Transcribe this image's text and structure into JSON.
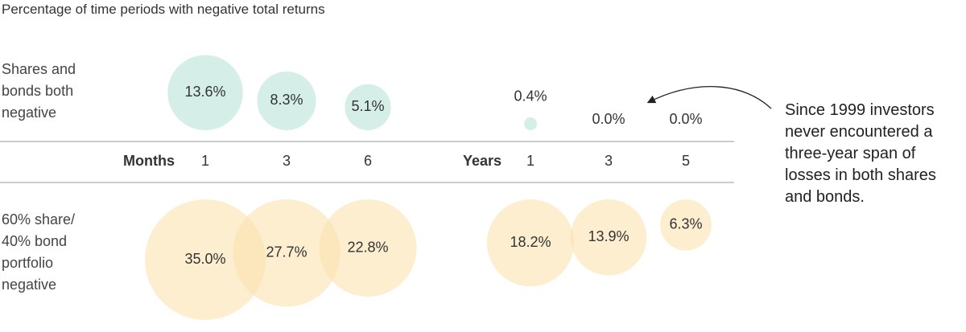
{
  "chart_data": {
    "type": "bubble",
    "title": "Percentage of time periods with negative total returns",
    "groups": [
      {
        "name": "Months",
        "categories": [
          "1",
          "3",
          "6"
        ]
      },
      {
        "name": "Years",
        "categories": [
          "1",
          "3",
          "5"
        ]
      }
    ],
    "series": [
      {
        "name": "Shares and bonds both negative",
        "color": "#d5efe8",
        "values": [
          13.6,
          8.3,
          5.1,
          0.4,
          0.0,
          0.0
        ],
        "value_labels": [
          "13.6%",
          "8.3%",
          "5.1%",
          "0.4%",
          "0.0%",
          "0.0%"
        ]
      },
      {
        "name": "60% share/40% bond portfolio negative",
        "color": "#fbe2b0",
        "values": [
          35.0,
          27.7,
          22.8,
          18.2,
          13.9,
          6.3
        ],
        "value_labels": [
          "35.0%",
          "27.7%",
          "22.8%",
          "18.2%",
          "13.9%",
          "6.3%"
        ]
      }
    ],
    "annotation": "Since 1999 investors never encountered a three-year span of losses in both shares and bonds."
  }
}
